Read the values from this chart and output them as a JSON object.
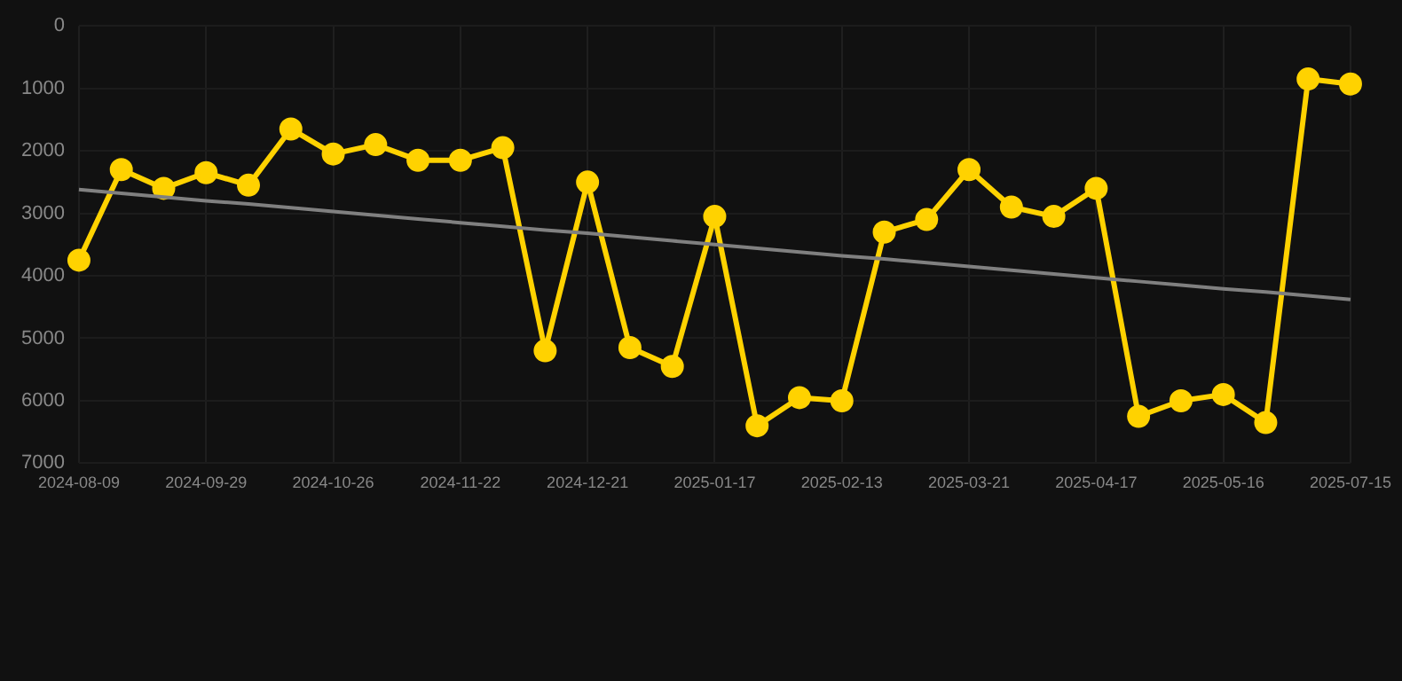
{
  "chart_data": {
    "type": "line",
    "categories": [
      "2024-08-09",
      null,
      null,
      "2024-09-29",
      null,
      null,
      "2024-10-26",
      null,
      null,
      "2024-11-22",
      null,
      null,
      "2024-12-21",
      null,
      null,
      "2025-01-17",
      null,
      null,
      "2025-02-13",
      null,
      null,
      "2025-03-21",
      null,
      null,
      "2025-04-17",
      null,
      null,
      "2025-05-16",
      null,
      null,
      "2025-07-15"
    ],
    "series": [
      {
        "color": "#ffd200",
        "values": [
          3750,
          2300,
          2600,
          2350,
          2550,
          1650,
          2050,
          1900,
          2150,
          2150,
          1950,
          5200,
          2500,
          5150,
          5450,
          3050,
          6400,
          5950,
          6000,
          3300,
          3100,
          2300,
          2900,
          3050,
          2600,
          6250,
          6000,
          5900,
          6350,
          850,
          930
        ],
        "marker": "circle"
      },
      {
        "type": "line",
        "color": "#808080",
        "values": [
          2620,
          2680,
          2740,
          2800,
          2850,
          2910,
          2970,
          3030,
          3090,
          3150,
          3210,
          3270,
          3320,
          3380,
          3440,
          3500,
          3560,
          3620,
          3680,
          3730,
          3790,
          3850,
          3910,
          3970,
          4030,
          4090,
          4150,
          4210,
          4260,
          4320,
          4380
        ],
        "marker": "none"
      }
    ],
    "ylim": [
      7000,
      0
    ],
    "yticks": [
      0,
      1000,
      2000,
      3000,
      4000,
      5000,
      6000,
      7000
    ],
    "grid": true,
    "legend": false
  }
}
